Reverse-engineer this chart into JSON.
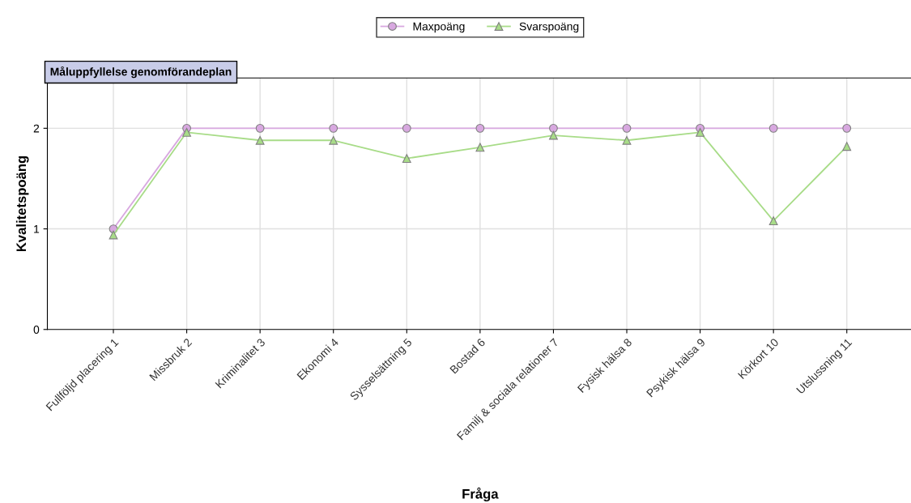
{
  "chart_data": {
    "type": "line",
    "title": "Måluppfyllelse genomförandeplan",
    "xlabel": "Fråga",
    "ylabel": "Kvalitetspoäng",
    "categories": [
      "Fullföljd placering 1",
      "Missbruk 2",
      "Kriminalitet 3",
      "Ekonomi 4",
      "Sysselsättning 5",
      "Bostad 6",
      "Familj & sociala relationer 7",
      "Fysisk hälsa 8",
      "Psykisk hälsa 9",
      "Körkort 10",
      "Utslussning 11"
    ],
    "series": [
      {
        "name": "Maxpoäng",
        "color": "#d8a8e0",
        "marker": "circle",
        "values": [
          1,
          2,
          2,
          2,
          2,
          2,
          2,
          2,
          2,
          2,
          2
        ]
      },
      {
        "name": "Svarspoäng",
        "color": "#a8dc88",
        "marker": "triangle",
        "values": [
          0.94,
          1.96,
          1.88,
          1.88,
          1.7,
          1.81,
          1.93,
          1.88,
          1.96,
          1.08,
          1.82
        ]
      }
    ],
    "ylim": [
      0,
      2.5
    ],
    "yticks": [
      0,
      1,
      2
    ],
    "grid": true,
    "legend": "top",
    "line_style": "solid"
  }
}
